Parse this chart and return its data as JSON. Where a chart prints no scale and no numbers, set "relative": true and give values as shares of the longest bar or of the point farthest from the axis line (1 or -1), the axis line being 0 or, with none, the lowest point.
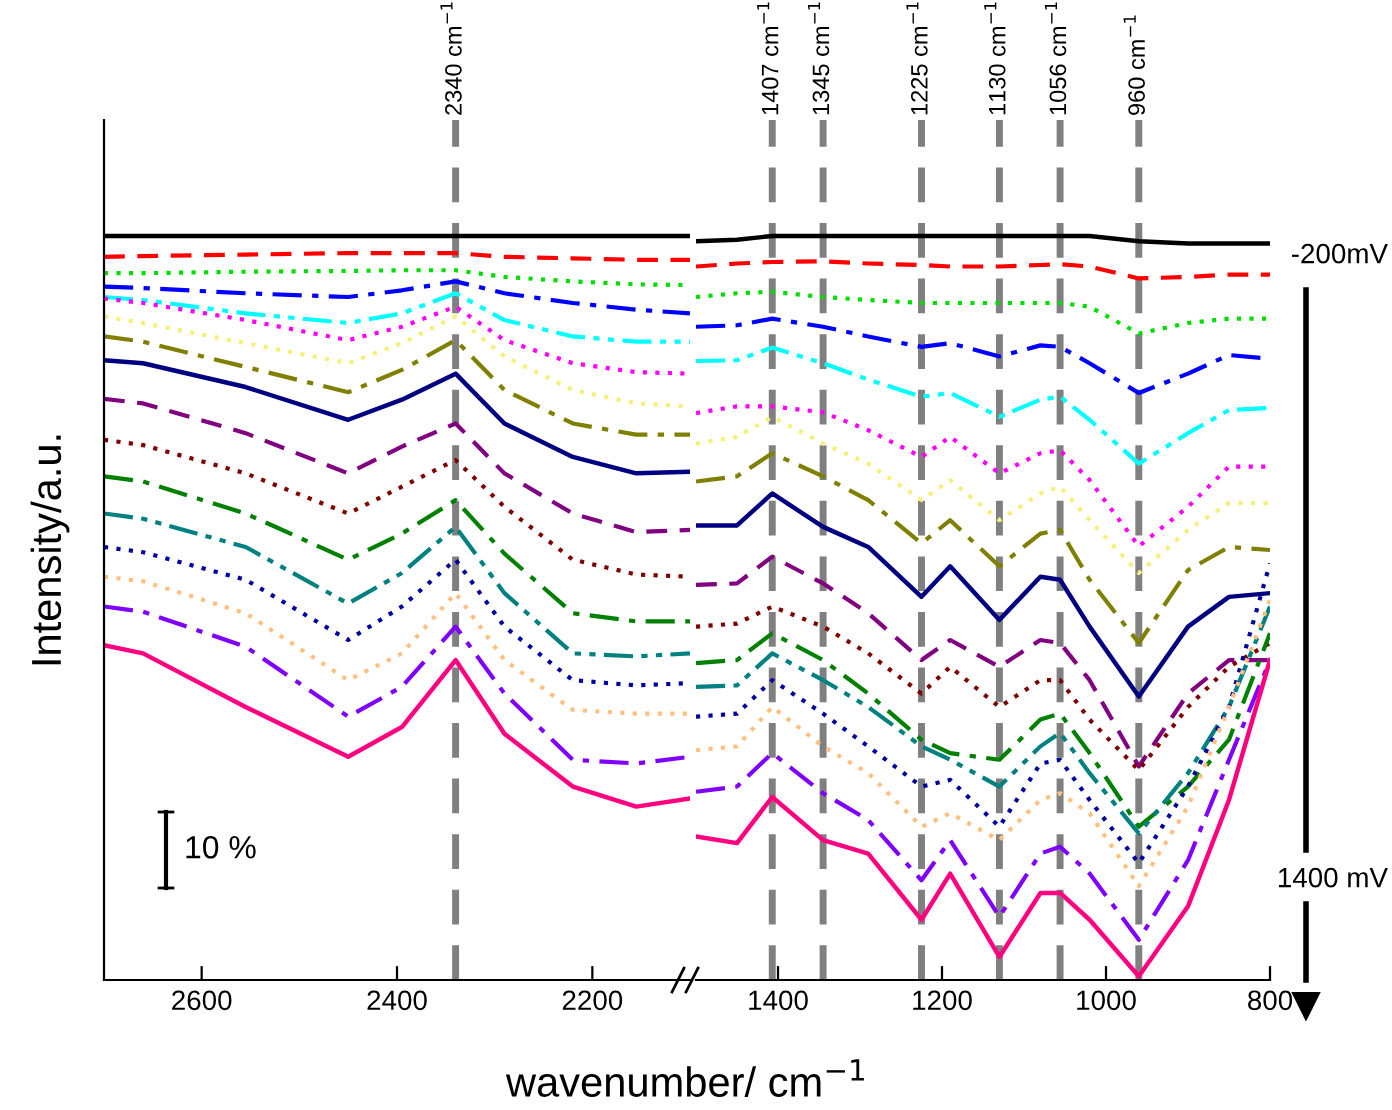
{
  "chart_data": [
    {
      "type": "line",
      "relative": true,
      "xlabel": "wavenumber/ cm$^{−1}$",
      "ylabel": "Intensity/a.u.",
      "xlim": [
        2700,
        2100
      ],
      "xticks": [
        2600,
        2400,
        2200
      ],
      "grid": false,
      "marker": "none",
      "x": [
        2700,
        2660,
        2555,
        2450,
        2395,
        2340,
        2290,
        2220,
        2155,
        2100
      ],
      "annotations": [
        "10 %"
      ],
      "ref_lines": [
        {
          "axis": "x",
          "value": 2340,
          "label": "2340 cm$^{−1}$",
          "color": "#808080",
          "line_style": "dashed"
        }
      ],
      "series": [
        {
          "color": "#000000",
          "line_style": "solid",
          "values": [
            1.0,
            1.0,
            1.0,
            1.0,
            1.0,
            1.0,
            1.0,
            1.0,
            1.0,
            1.0
          ]
        },
        {
          "color": "#ff0000",
          "line_style": "dashed",
          "values": [
            0.972,
            0.973,
            0.975,
            0.977,
            0.977,
            0.977,
            0.972,
            0.97,
            0.968,
            0.968
          ]
        },
        {
          "color": "#00dd00",
          "line_style": "dotted",
          "values": [
            0.95,
            0.95,
            0.952,
            0.953,
            0.954,
            0.954,
            0.945,
            0.939,
            0.935,
            0.934
          ]
        },
        {
          "color": "#0000ff",
          "line_style": "dashdot",
          "values": [
            0.932,
            0.93,
            0.923,
            0.918,
            0.927,
            0.939,
            0.923,
            0.91,
            0.901,
            0.896
          ]
        },
        {
          "color": "#00ffff",
          "line_style": "dashdotdot",
          "values": [
            0.918,
            0.914,
            0.896,
            0.883,
            0.896,
            0.923,
            0.887,
            0.865,
            0.858,
            0.858
          ]
        },
        {
          "color": "#ff00ff",
          "line_style": "dotted",
          "values": [
            0.916,
            0.91,
            0.887,
            0.86,
            0.878,
            0.905,
            0.86,
            0.829,
            0.817,
            0.815
          ]
        },
        {
          "color": "#f5f07a",
          "line_style": "dotted",
          "values": [
            0.892,
            0.883,
            0.856,
            0.829,
            0.856,
            0.892,
            0.838,
            0.793,
            0.775,
            0.771
          ]
        },
        {
          "color": "#808000",
          "line_style": "dashdot",
          "values": [
            0.865,
            0.858,
            0.824,
            0.79,
            0.82,
            0.86,
            0.793,
            0.748,
            0.733,
            0.733
          ]
        },
        {
          "color": "#000080",
          "line_style": "solid",
          "values": [
            0.833,
            0.829,
            0.797,
            0.753,
            0.78,
            0.815,
            0.748,
            0.703,
            0.681,
            0.683
          ]
        },
        {
          "color": "#800080",
          "line_style": "dashed",
          "values": [
            0.781,
            0.775,
            0.735,
            0.681,
            0.717,
            0.748,
            0.681,
            0.627,
            0.602,
            0.605
          ]
        },
        {
          "color": "#800000",
          "line_style": "dotted",
          "values": [
            0.726,
            0.719,
            0.681,
            0.627,
            0.663,
            0.699,
            0.636,
            0.565,
            0.545,
            0.542
          ]
        },
        {
          "color": "#008000",
          "line_style": "dashdot",
          "values": [
            0.677,
            0.67,
            0.627,
            0.565,
            0.6,
            0.645,
            0.573,
            0.493,
            0.482,
            0.482
          ]
        },
        {
          "color": "#008080",
          "line_style": "dashdotdot",
          "values": [
            0.627,
            0.62,
            0.582,
            0.506,
            0.547,
            0.609,
            0.52,
            0.439,
            0.435,
            0.439
          ]
        },
        {
          "color": "#0000a0",
          "line_style": "dotted",
          "values": [
            0.582,
            0.575,
            0.538,
            0.457,
            0.502,
            0.565,
            0.475,
            0.403,
            0.396,
            0.399
          ]
        },
        {
          "color": "#ffc080",
          "line_style": "dotted",
          "values": [
            0.542,
            0.536,
            0.493,
            0.403,
            0.439,
            0.52,
            0.43,
            0.363,
            0.358,
            0.358
          ]
        },
        {
          "color": "#8000ff",
          "line_style": "dashdot",
          "values": [
            0.502,
            0.495,
            0.448,
            0.354,
            0.394,
            0.475,
            0.385,
            0.296,
            0.291,
            0.3
          ]
        },
        {
          "color": "#ff0080",
          "line_style": "solid",
          "values": [
            0.45,
            0.439,
            0.367,
            0.3,
            0.34,
            0.43,
            0.331,
            0.26,
            0.233,
            0.244
          ]
        }
      ]
    },
    {
      "type": "line",
      "relative": true,
      "xlim": [
        1500,
        800
      ],
      "xticks": [
        1400,
        1200,
        1000,
        800
      ],
      "grid": false,
      "marker": "none",
      "x": [
        1500,
        1450,
        1407,
        1345,
        1290,
        1225,
        1190,
        1130,
        1080,
        1056,
        1020,
        960,
        900,
        850,
        800
      ],
      "annotations": [
        "-200mV",
        "1400 mV"
      ],
      "ref_lines": [
        {
          "axis": "x",
          "value": 1407,
          "label": "1407 cm$^{−1}$",
          "color": "#808080",
          "line_style": "dashed"
        },
        {
          "axis": "x",
          "value": 1345,
          "label": "1345 cm$^{−1}$",
          "color": "#808080",
          "line_style": "dashed"
        },
        {
          "axis": "x",
          "value": 1225,
          "label": "1225 cm$^{−1}$",
          "color": "#808080",
          "line_style": "dashed"
        },
        {
          "axis": "x",
          "value": 1130,
          "label": "1130 cm$^{−1}$",
          "color": "#808080",
          "line_style": "dashed"
        },
        {
          "axis": "x",
          "value": 1056,
          "label": "1056 cm$^{−1}$",
          "color": "#808080",
          "line_style": "dashed"
        },
        {
          "axis": "x",
          "value": 960,
          "label": "960 cm$^{−1}$",
          "color": "#808080",
          "line_style": "dashed"
        }
      ],
      "series": [
        {
          "color": "#000000",
          "line_style": "solid",
          "values": [
            0.993,
            0.995,
            1.0,
            1.0,
            1.0,
            1.0,
            1.0,
            1.0,
            1.0,
            1.0,
            1.0,
            0.993,
            0.99,
            0.99,
            0.99
          ]
        },
        {
          "color": "#ff0000",
          "line_style": "dashed",
          "values": [
            0.959,
            0.963,
            0.965,
            0.966,
            0.963,
            0.961,
            0.959,
            0.959,
            0.961,
            0.962,
            0.959,
            0.943,
            0.945,
            0.948,
            0.948
          ]
        },
        {
          "color": "#00dd00",
          "line_style": "dotted",
          "values": [
            0.918,
            0.923,
            0.925,
            0.918,
            0.914,
            0.91,
            0.91,
            0.91,
            0.91,
            0.91,
            0.905,
            0.869,
            0.883,
            0.889,
            0.889
          ]
        },
        {
          "color": "#0000ff",
          "line_style": "dashdot",
          "values": [
            0.878,
            0.88,
            0.889,
            0.878,
            0.865,
            0.851,
            0.856,
            0.838,
            0.853,
            0.851,
            0.829,
            0.789,
            0.815,
            0.84,
            0.835
          ]
        },
        {
          "color": "#00ffff",
          "line_style": "dashdotdot",
          "values": [
            0.832,
            0.833,
            0.85,
            0.829,
            0.807,
            0.784,
            0.789,
            0.757,
            0.78,
            0.784,
            0.753,
            0.694,
            0.735,
            0.766,
            0.769
          ]
        },
        {
          "color": "#ff00ff",
          "line_style": "dotted",
          "values": [
            0.762,
            0.771,
            0.771,
            0.763,
            0.739,
            0.703,
            0.73,
            0.681,
            0.708,
            0.712,
            0.672,
            0.583,
            0.636,
            0.69,
            0.69
          ]
        },
        {
          "color": "#f5f07a",
          "line_style": "dotted",
          "values": [
            0.721,
            0.73,
            0.757,
            0.721,
            0.694,
            0.645,
            0.672,
            0.618,
            0.654,
            0.663,
            0.618,
            0.547,
            0.605,
            0.641,
            0.641
          ]
        },
        {
          "color": "#808000",
          "line_style": "dashdot",
          "values": [
            0.67,
            0.677,
            0.708,
            0.677,
            0.645,
            0.587,
            0.618,
            0.556,
            0.6,
            0.605,
            0.538,
            0.453,
            0.551,
            0.582,
            0.578
          ]
        },
        {
          "color": "#000080",
          "line_style": "solid",
          "values": [
            0.611,
            0.611,
            0.654,
            0.609,
            0.582,
            0.515,
            0.556,
            0.484,
            0.542,
            0.538,
            0.475,
            0.381,
            0.475,
            0.515,
            0.52
          ]
        },
        {
          "color": "#800080",
          "line_style": "dashed",
          "values": [
            0.531,
            0.533,
            0.569,
            0.533,
            0.493,
            0.43,
            0.457,
            0.421,
            0.457,
            0.453,
            0.403,
            0.287,
            0.385,
            0.43,
            0.43
          ]
        },
        {
          "color": "#800000",
          "line_style": "dotted",
          "values": [
            0.475,
            0.479,
            0.502,
            0.475,
            0.439,
            0.385,
            0.421,
            0.367,
            0.403,
            0.403,
            0.35,
            0.282,
            0.367,
            0.421,
            0.453
          ]
        },
        {
          "color": "#008000",
          "line_style": "dashdot",
          "values": [
            0.426,
            0.43,
            0.466,
            0.43,
            0.385,
            0.323,
            0.305,
            0.296,
            0.35,
            0.358,
            0.305,
            0.206,
            0.26,
            0.323,
            0.466
          ]
        },
        {
          "color": "#008080",
          "line_style": "dashdotdot",
          "values": [
            0.394,
            0.396,
            0.439,
            0.403,
            0.367,
            0.314,
            0.296,
            0.26,
            0.314,
            0.332,
            0.278,
            0.197,
            0.278,
            0.367,
            0.502
          ]
        },
        {
          "color": "#0000a0",
          "line_style": "dotted",
          "values": [
            0.354,
            0.358,
            0.403,
            0.358,
            0.314,
            0.26,
            0.269,
            0.206,
            0.291,
            0.296,
            0.242,
            0.157,
            0.26,
            0.367,
            0.56
          ]
        },
        {
          "color": "#ffc080",
          "line_style": "dotted",
          "values": [
            0.309,
            0.314,
            0.367,
            0.314,
            0.278,
            0.206,
            0.224,
            0.188,
            0.242,
            0.251,
            0.224,
            0.126,
            0.233,
            0.367,
            0.511
          ]
        },
        {
          "color": "#8000ff",
          "line_style": "dashdot",
          "values": [
            0.253,
            0.26,
            0.305,
            0.251,
            0.215,
            0.134,
            0.188,
            0.085,
            0.17,
            0.179,
            0.143,
            0.054,
            0.161,
            0.296,
            0.43
          ]
        },
        {
          "color": "#ff0080",
          "line_style": "solid",
          "values": [
            0.193,
            0.184,
            0.246,
            0.188,
            0.17,
            0.081,
            0.143,
            0.031,
            0.117,
            0.117,
            0.081,
            0.005,
            0.099,
            0.242,
            0.43
          ]
        }
      ]
    }
  ]
}
